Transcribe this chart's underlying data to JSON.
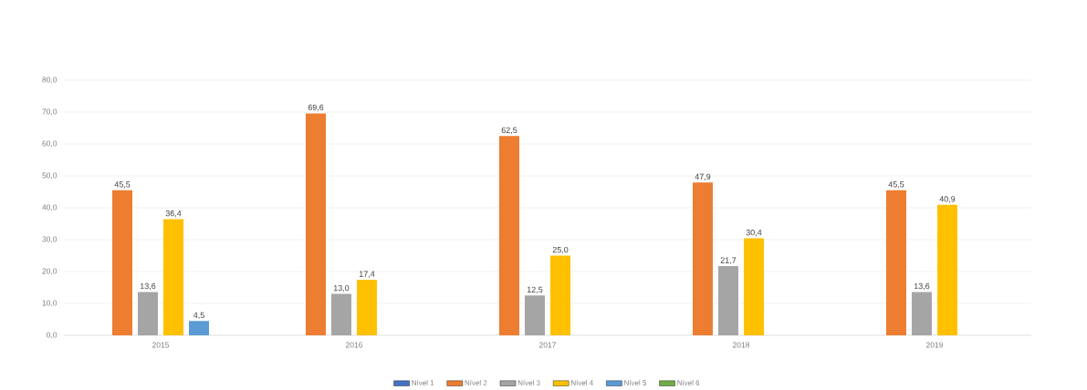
{
  "chart_data": {
    "type": "bar",
    "categories": [
      "2015",
      "2016",
      "2017",
      "2018",
      "2019"
    ],
    "series": [
      {
        "name": "Nível 1",
        "color": "#4472c4",
        "values": [
          null,
          null,
          null,
          null,
          null
        ],
        "value_labels": [
          null,
          null,
          null,
          null,
          null
        ]
      },
      {
        "name": "Nível 2",
        "color": "#ed7d31",
        "values": [
          45.5,
          69.6,
          62.5,
          47.9,
          45.5
        ],
        "value_labels": [
          "45,5",
          "69,6",
          "62,5",
          "47,9",
          "45,5"
        ]
      },
      {
        "name": "Nível 3",
        "color": "#a5a5a5",
        "values": [
          13.6,
          13.0,
          12.5,
          21.7,
          13.6
        ],
        "value_labels": [
          "13,6",
          "13,0",
          "12,5",
          "21,7",
          "13,6"
        ]
      },
      {
        "name": "Nível 4",
        "color": "#ffc000",
        "values": [
          36.4,
          17.4,
          25.0,
          30.4,
          40.9
        ],
        "value_labels": [
          "36,4",
          "17,4",
          "25,0",
          "30,4",
          "40,9"
        ]
      },
      {
        "name": "Nível 5",
        "color": "#5b9bd5",
        "values": [
          4.5,
          null,
          null,
          null,
          null
        ],
        "value_labels": [
          "4,5",
          null,
          null,
          null,
          null
        ]
      },
      {
        "name": "Nível 6",
        "color": "#70ad47",
        "values": [
          null,
          null,
          null,
          null,
          null
        ],
        "value_labels": [
          null,
          null,
          null,
          null,
          null
        ]
      }
    ],
    "ylim": [
      0,
      80
    ],
    "yticks": [
      {
        "value": 0,
        "label": "0,0"
      },
      {
        "value": 10,
        "label": "10,0"
      },
      {
        "value": 20,
        "label": "20,0"
      },
      {
        "value": 30,
        "label": "30,0"
      },
      {
        "value": 40,
        "label": "40,0"
      },
      {
        "value": 50,
        "label": "50,0"
      },
      {
        "value": 60,
        "label": "60,0"
      },
      {
        "value": 70,
        "label": "70,0"
      },
      {
        "value": 80,
        "label": "80,0"
      }
    ],
    "grid": "y",
    "legend": "bottom"
  }
}
